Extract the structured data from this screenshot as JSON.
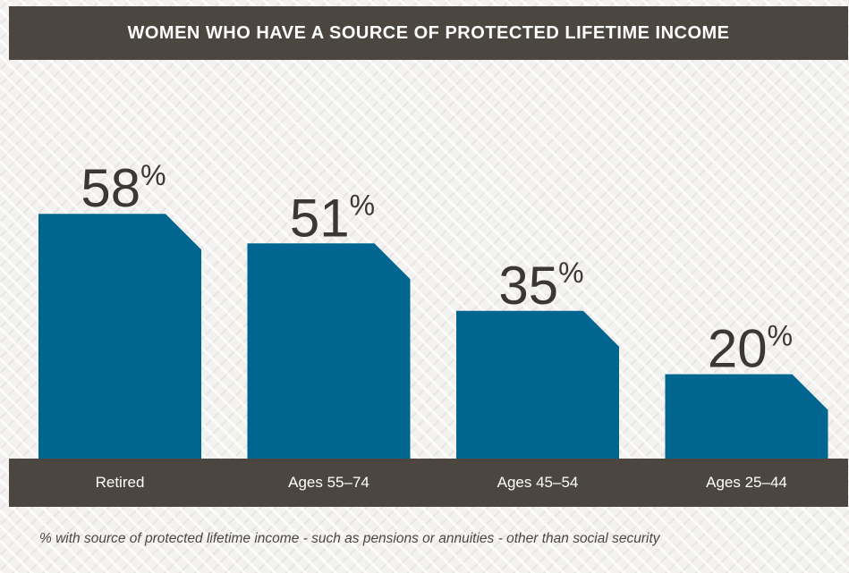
{
  "chart_data": {
    "type": "bar",
    "title": "WOMEN WHO HAVE A SOURCE OF PROTECTED LIFETIME INCOME",
    "categories": [
      "Retired",
      "Ages 55–74",
      "Ages 45–54",
      "Ages 25–44"
    ],
    "values": [
      58,
      51,
      35,
      20
    ],
    "value_suffix": "%",
    "ylim": [
      0,
      65
    ],
    "grid": false,
    "legend": "none",
    "bar_color": "#00668f",
    "label_color": "#3b3833"
  },
  "footnote": "% with source of protected lifetime income - such as pensions or annuities - other than social security"
}
